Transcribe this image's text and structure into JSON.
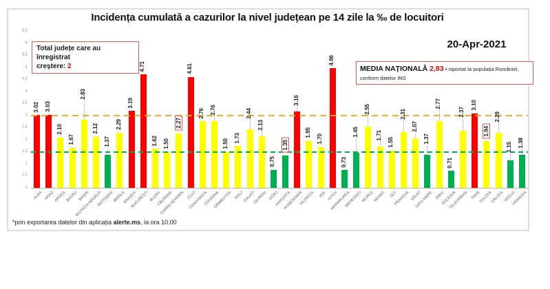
{
  "header": {
    "title": "Incidența cumulată a cazurilor la nivel județean pe 14 zile la ‰ de locuitori",
    "date": "20-Apr-2021"
  },
  "growth_box": {
    "line1": "Total județe care au înregistrat",
    "line2_label": "creștere: ",
    "line2_value": "2"
  },
  "media_box": {
    "label": "MEDIA NAȚIONALĂ ",
    "value": "2,83",
    "note1": " • raportat la populația României,",
    "note2": "conform datelor INS"
  },
  "footnote": {
    "prefix": "*prin exportarea datelor din aplicația ",
    "bold": "alerte.ms",
    "suffix": ", la ora 10.00"
  },
  "colors": {
    "red": "#FF0000",
    "yellow": "#FFFF00",
    "green": "#00B050",
    "orange_line": "#FFA826",
    "green_line": "#00B050",
    "box_border": "#F25555",
    "value_red": "#E00000"
  },
  "chart_data": {
    "type": "bar",
    "title": "Incidența cumulată a cazurilor la nivel județean pe 14 zile la ‰ de locuitori",
    "xlabel": "",
    "ylabel": "",
    "ylim": [
      0,
      6.5
    ],
    "yticks": [
      0,
      0.5,
      1,
      1.5,
      2,
      2.5,
      3,
      3.5,
      4,
      4.5,
      5,
      5.5,
      6,
      6.5
    ],
    "grid": false,
    "legend": false,
    "thresholds": {
      "orange": 3.0,
      "green": 1.5
    },
    "categories": [
      "ALBA",
      "ARAD",
      "ARGEȘ",
      "BACĂU",
      "BIHOR",
      "BISTRIȚA-NĂSĂUD",
      "BOTOȘANI",
      "BRĂILA",
      "BRAȘOV",
      "BUCUREȘTI",
      "BUZĂU",
      "CĂLĂRAȘI",
      "CARAȘ-SEVERIN",
      "CLUJ",
      "CONSTANȚA",
      "COVASNA",
      "DÂMBOVIȚA",
      "DOLJ",
      "GALAȚI",
      "GIURGIU",
      "GORJ",
      "HARGHITA",
      "HUNEDOARA",
      "IALOMIȚA",
      "IAȘI",
      "ILFOV",
      "MARAMUREȘ",
      "MEHEDINȚI",
      "MUREȘ",
      "NEAMȚ",
      "OLT",
      "PRAHOVA",
      "SĂLAJ",
      "SATU MARE",
      "SIBIU",
      "SUCEAVA",
      "TELEORMAN",
      "TIMIȘ",
      "TULCEA",
      "VÂLCEA",
      "VASLUI",
      "VRANCEA"
    ],
    "values": [
      3.02,
      3.03,
      2.1,
      1.67,
      2.83,
      2.12,
      1.37,
      2.29,
      3.19,
      4.71,
      1.62,
      1.5,
      2.27,
      4.61,
      2.76,
      2.76,
      1.5,
      1.73,
      2.44,
      2.13,
      0.75,
      1.35,
      3.16,
      1.95,
      1.7,
      4.96,
      0.73,
      1.45,
      2.55,
      1.71,
      1.55,
      2.31,
      2.07,
      1.37,
      2.77,
      0.71,
      2.37,
      3.1,
      1.94,
      2.29,
      1.15,
      1.38
    ],
    "boxed_indices": [
      12,
      21,
      38
    ],
    "label_lifts": [
      3,
      3,
      3,
      3,
      28,
      3,
      10,
      3,
      3,
      3,
      3,
      3,
      3,
      3,
      3,
      8,
      3,
      3,
      14,
      8,
      3,
      3,
      8,
      3,
      3,
      3,
      3,
      22,
      16,
      8,
      3,
      18,
      8,
      14,
      16,
      3,
      18,
      3,
      3,
      14,
      10,
      8
    ],
    "bar_color_rule": "red if value >= 3.0, green if value < 1.5, else yellow"
  }
}
